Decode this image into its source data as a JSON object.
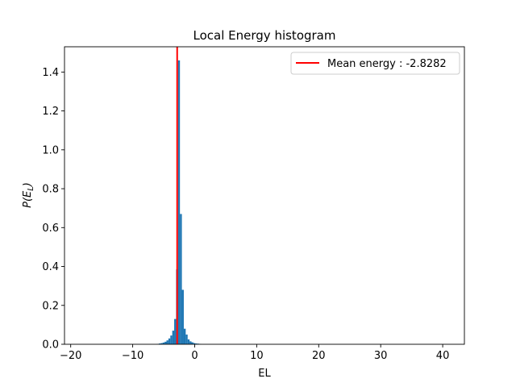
{
  "chart_data": {
    "type": "bar",
    "title": "Local Energy histogram",
    "xlabel": "EL",
    "ylabel": "P(E_L)",
    "xlim": [
      -21,
      43.5
    ],
    "ylim": [
      0,
      1.53
    ],
    "xticks": [
      -20,
      -10,
      0,
      10,
      20,
      30,
      40
    ],
    "xtick_labels": [
      "−20",
      "−10",
      "0",
      "10",
      "20",
      "30",
      "40"
    ],
    "yticks": [
      0.0,
      0.2,
      0.4,
      0.6,
      0.8,
      1.0,
      1.2,
      1.4
    ],
    "ytick_labels": [
      "0.0",
      "0.2",
      "0.4",
      "0.6",
      "0.8",
      "1.0",
      "1.2",
      "1.4"
    ],
    "bin_width": 0.31,
    "series": [
      {
        "bins": [
          {
            "x": -6.1,
            "value": 0.002
          },
          {
            "x": -5.79,
            "value": 0.004
          },
          {
            "x": -5.48,
            "value": 0.006
          },
          {
            "x": -5.17,
            "value": 0.009
          },
          {
            "x": -4.86,
            "value": 0.013
          },
          {
            "x": -4.55,
            "value": 0.02
          },
          {
            "x": -4.24,
            "value": 0.03
          },
          {
            "x": -3.93,
            "value": 0.045
          },
          {
            "x": -3.62,
            "value": 0.07
          },
          {
            "x": -3.31,
            "value": 0.13
          },
          {
            "x": -3.0,
            "value": 0.385
          },
          {
            "x": -2.69,
            "value": 1.46
          },
          {
            "x": -2.38,
            "value": 0.67
          },
          {
            "x": -2.07,
            "value": 0.28
          },
          {
            "x": -1.76,
            "value": 0.08
          },
          {
            "x": -1.45,
            "value": 0.05
          },
          {
            "x": -1.14,
            "value": 0.025
          },
          {
            "x": -0.83,
            "value": 0.015
          },
          {
            "x": -0.52,
            "value": 0.01
          },
          {
            "x": -0.21,
            "value": 0.006
          },
          {
            "x": 0.1,
            "value": 0.004
          },
          {
            "x": 0.41,
            "value": 0.003
          },
          {
            "x": 0.72,
            "value": 0.002
          }
        ],
        "color": "#1f77b4"
      }
    ],
    "vline": {
      "x": -2.8282,
      "color": "#ff0000"
    },
    "legend": {
      "label": "Mean energy : -2.8282",
      "position": "top-right"
    },
    "grid": false
  }
}
